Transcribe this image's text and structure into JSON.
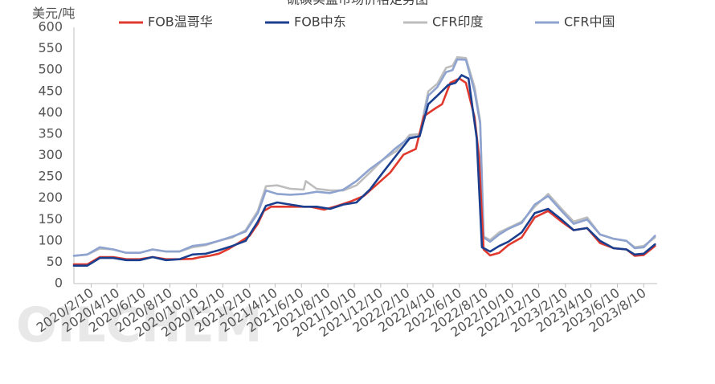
{
  "chart_data": {
    "type": "line",
    "title": "硫磺实盘市场价格走势图",
    "unit_label": "美元/吨",
    "watermark": "OILCHEM",
    "ylim": [
      0,
      600
    ],
    "y_ticks": [
      0,
      50,
      100,
      150,
      200,
      250,
      300,
      350,
      400,
      450,
      500,
      550,
      600
    ],
    "x_range": [
      "2020-01-01",
      "2023-09-10"
    ],
    "x_tick_labels": [
      "2020/2/10",
      "2020/4/10",
      "2020/6/10",
      "2020/8/10",
      "2020/10/10",
      "2020/12/10",
      "2021/2/10",
      "2021/4/10",
      "2021/6/10",
      "2021/8/10",
      "2021/10/10",
      "2021/12/10",
      "2022/2/10",
      "2022/4/10",
      "2022/6/10",
      "2022/8/10",
      "2022/10/10",
      "2022/12/10",
      "2023/2/10",
      "2023/4/10",
      "2023/6/10",
      "2023/8/10"
    ],
    "grid": false,
    "legend_position": "top",
    "series": [
      {
        "name": "FOB温哥华",
        "color": "#e03a2f",
        "points": [
          [
            "2020-01-01",
            45
          ],
          [
            "2020-02-01",
            45
          ],
          [
            "2020-03-01",
            62
          ],
          [
            "2020-04-01",
            62
          ],
          [
            "2020-05-01",
            57
          ],
          [
            "2020-06-01",
            57
          ],
          [
            "2020-07-01",
            62
          ],
          [
            "2020-08-01",
            57
          ],
          [
            "2020-09-01",
            57
          ],
          [
            "2020-10-01",
            58
          ],
          [
            "2020-10-20",
            62
          ],
          [
            "2020-11-10",
            65
          ],
          [
            "2020-12-01",
            70
          ],
          [
            "2020-12-25",
            82
          ],
          [
            "2021-01-15",
            95
          ],
          [
            "2021-02-10",
            112
          ],
          [
            "2021-03-01",
            140
          ],
          [
            "2021-03-15",
            170
          ],
          [
            "2021-04-01",
            180
          ],
          [
            "2021-05-01",
            180
          ],
          [
            "2021-06-01",
            180
          ],
          [
            "2021-07-01",
            180
          ],
          [
            "2021-08-01",
            173
          ],
          [
            "2021-09-01",
            182
          ],
          [
            "2021-10-01",
            192
          ],
          [
            "2021-11-01",
            205
          ],
          [
            "2021-12-01",
            232
          ],
          [
            "2022-01-01",
            260
          ],
          [
            "2022-02-01",
            302
          ],
          [
            "2022-03-01",
            315
          ],
          [
            "2022-03-20",
            392
          ],
          [
            "2022-04-15",
            410
          ],
          [
            "2022-05-01",
            420
          ],
          [
            "2022-05-20",
            470
          ],
          [
            "2022-06-10",
            480
          ],
          [
            "2022-06-25",
            470
          ],
          [
            "2022-07-15",
            390
          ],
          [
            "2022-07-25",
            300
          ],
          [
            "2022-08-05",
            80
          ],
          [
            "2022-08-20",
            66
          ],
          [
            "2022-09-10",
            72
          ],
          [
            "2022-10-01",
            90
          ],
          [
            "2022-11-01",
            108
          ],
          [
            "2022-12-01",
            155
          ],
          [
            "2023-01-01",
            170
          ],
          [
            "2023-02-01",
            145
          ],
          [
            "2023-03-01",
            125
          ],
          [
            "2023-04-01",
            130
          ],
          [
            "2023-05-01",
            95
          ],
          [
            "2023-06-01",
            83
          ],
          [
            "2023-07-01",
            80
          ],
          [
            "2023-07-20",
            65
          ],
          [
            "2023-08-10",
            67
          ],
          [
            "2023-09-05",
            88
          ]
        ]
      },
      {
        "name": "FOB中东",
        "color": "#1b3f8f",
        "points": [
          [
            "2020-01-01",
            42
          ],
          [
            "2020-02-01",
            42
          ],
          [
            "2020-03-01",
            60
          ],
          [
            "2020-04-01",
            60
          ],
          [
            "2020-05-01",
            55
          ],
          [
            "2020-06-01",
            55
          ],
          [
            "2020-07-01",
            62
          ],
          [
            "2020-08-01",
            55
          ],
          [
            "2020-09-01",
            57
          ],
          [
            "2020-10-01",
            68
          ],
          [
            "2020-11-01",
            70
          ],
          [
            "2020-12-01",
            78
          ],
          [
            "2021-01-01",
            88
          ],
          [
            "2021-02-01",
            100
          ],
          [
            "2021-03-01",
            145
          ],
          [
            "2021-03-20",
            182
          ],
          [
            "2021-04-15",
            190
          ],
          [
            "2021-05-15",
            185
          ],
          [
            "2021-06-15",
            180
          ],
          [
            "2021-07-15",
            180
          ],
          [
            "2021-08-15",
            175
          ],
          [
            "2021-09-15",
            185
          ],
          [
            "2021-10-15",
            190
          ],
          [
            "2021-11-15",
            220
          ],
          [
            "2021-12-15",
            260
          ],
          [
            "2022-01-15",
            300
          ],
          [
            "2022-02-15",
            340
          ],
          [
            "2022-03-10",
            345
          ],
          [
            "2022-03-30",
            420
          ],
          [
            "2022-04-20",
            440
          ],
          [
            "2022-05-15",
            465
          ],
          [
            "2022-06-01",
            470
          ],
          [
            "2022-06-15",
            488
          ],
          [
            "2022-07-01",
            480
          ],
          [
            "2022-07-20",
            340
          ],
          [
            "2022-08-01",
            85
          ],
          [
            "2022-08-20",
            75
          ],
          [
            "2022-09-10",
            88
          ],
          [
            "2022-10-01",
            98
          ],
          [
            "2022-11-01",
            120
          ],
          [
            "2022-12-01",
            165
          ],
          [
            "2023-01-01",
            175
          ],
          [
            "2023-02-01",
            150
          ],
          [
            "2023-03-01",
            125
          ],
          [
            "2023-04-01",
            130
          ],
          [
            "2023-05-01",
            100
          ],
          [
            "2023-06-01",
            83
          ],
          [
            "2023-07-01",
            80
          ],
          [
            "2023-07-20",
            68
          ],
          [
            "2023-08-10",
            70
          ],
          [
            "2023-09-05",
            92
          ]
        ]
      },
      {
        "name": "CFR印度",
        "color": "#bdbdbd",
        "points": [
          [
            "2020-01-01",
            65
          ],
          [
            "2020-02-01",
            68
          ],
          [
            "2020-03-01",
            82
          ],
          [
            "2020-04-01",
            80
          ],
          [
            "2020-05-01",
            72
          ],
          [
            "2020-06-01",
            72
          ],
          [
            "2020-07-01",
            80
          ],
          [
            "2020-08-01",
            75
          ],
          [
            "2020-09-01",
            75
          ],
          [
            "2020-10-01",
            85
          ],
          [
            "2020-11-01",
            90
          ],
          [
            "2020-12-01",
            100
          ],
          [
            "2021-01-01",
            108
          ],
          [
            "2021-02-01",
            125
          ],
          [
            "2021-03-01",
            170
          ],
          [
            "2021-03-20",
            228
          ],
          [
            "2021-04-15",
            230
          ],
          [
            "2021-05-15",
            222
          ],
          [
            "2021-06-15",
            220
          ],
          [
            "2021-06-20",
            240
          ],
          [
            "2021-07-15",
            222
          ],
          [
            "2021-08-15",
            218
          ],
          [
            "2021-09-15",
            218
          ],
          [
            "2021-10-15",
            230
          ],
          [
            "2021-11-15",
            260
          ],
          [
            "2021-12-15",
            290
          ],
          [
            "2022-01-15",
            310
          ],
          [
            "2022-02-15",
            348
          ],
          [
            "2022-03-10",
            350
          ],
          [
            "2022-03-30",
            450
          ],
          [
            "2022-04-20",
            468
          ],
          [
            "2022-05-10",
            505
          ],
          [
            "2022-05-25",
            510
          ],
          [
            "2022-06-05",
            530
          ],
          [
            "2022-06-25",
            528
          ],
          [
            "2022-07-15",
            460
          ],
          [
            "2022-07-28",
            380
          ],
          [
            "2022-08-05",
            110
          ],
          [
            "2022-08-20",
            102
          ],
          [
            "2022-09-10",
            120
          ],
          [
            "2022-10-01",
            130
          ],
          [
            "2022-11-01",
            145
          ],
          [
            "2022-12-01",
            180
          ],
          [
            "2023-01-01",
            210
          ],
          [
            "2023-02-01",
            175
          ],
          [
            "2023-03-01",
            145
          ],
          [
            "2023-04-01",
            155
          ],
          [
            "2023-05-01",
            115
          ],
          [
            "2023-06-01",
            105
          ],
          [
            "2023-07-01",
            100
          ],
          [
            "2023-07-20",
            85
          ],
          [
            "2023-08-10",
            88
          ],
          [
            "2023-09-05",
            108
          ]
        ]
      },
      {
        "name": "CFR中国",
        "color": "#8ea3cf",
        "points": [
          [
            "2020-01-01",
            65
          ],
          [
            "2020-02-01",
            68
          ],
          [
            "2020-03-01",
            85
          ],
          [
            "2020-04-01",
            80
          ],
          [
            "2020-05-01",
            72
          ],
          [
            "2020-06-01",
            72
          ],
          [
            "2020-07-01",
            80
          ],
          [
            "2020-08-01",
            75
          ],
          [
            "2020-09-01",
            75
          ],
          [
            "2020-10-01",
            88
          ],
          [
            "2020-11-01",
            92
          ],
          [
            "2020-12-01",
            100
          ],
          [
            "2021-01-01",
            110
          ],
          [
            "2021-02-01",
            122
          ],
          [
            "2021-03-01",
            165
          ],
          [
            "2021-03-20",
            218
          ],
          [
            "2021-04-15",
            210
          ],
          [
            "2021-05-15",
            208
          ],
          [
            "2021-06-15",
            210
          ],
          [
            "2021-07-15",
            215
          ],
          [
            "2021-08-15",
            212
          ],
          [
            "2021-09-15",
            220
          ],
          [
            "2021-10-15",
            240
          ],
          [
            "2021-11-15",
            268
          ],
          [
            "2021-12-15",
            290
          ],
          [
            "2022-01-15",
            318
          ],
          [
            "2022-02-15",
            342
          ],
          [
            "2022-03-10",
            345
          ],
          [
            "2022-03-30",
            440
          ],
          [
            "2022-04-20",
            460
          ],
          [
            "2022-05-10",
            495
          ],
          [
            "2022-05-25",
            500
          ],
          [
            "2022-06-05",
            525
          ],
          [
            "2022-06-25",
            524
          ],
          [
            "2022-07-15",
            450
          ],
          [
            "2022-07-28",
            375
          ],
          [
            "2022-08-05",
            108
          ],
          [
            "2022-08-20",
            98
          ],
          [
            "2022-09-10",
            115
          ],
          [
            "2022-10-01",
            128
          ],
          [
            "2022-11-01",
            142
          ],
          [
            "2022-12-01",
            185
          ],
          [
            "2023-01-01",
            205
          ],
          [
            "2023-02-01",
            170
          ],
          [
            "2023-03-01",
            140
          ],
          [
            "2023-04-01",
            150
          ],
          [
            "2023-05-01",
            115
          ],
          [
            "2023-06-01",
            105
          ],
          [
            "2023-07-01",
            100
          ],
          [
            "2023-07-20",
            83
          ],
          [
            "2023-08-10",
            85
          ],
          [
            "2023-09-05",
            112
          ]
        ]
      }
    ]
  }
}
